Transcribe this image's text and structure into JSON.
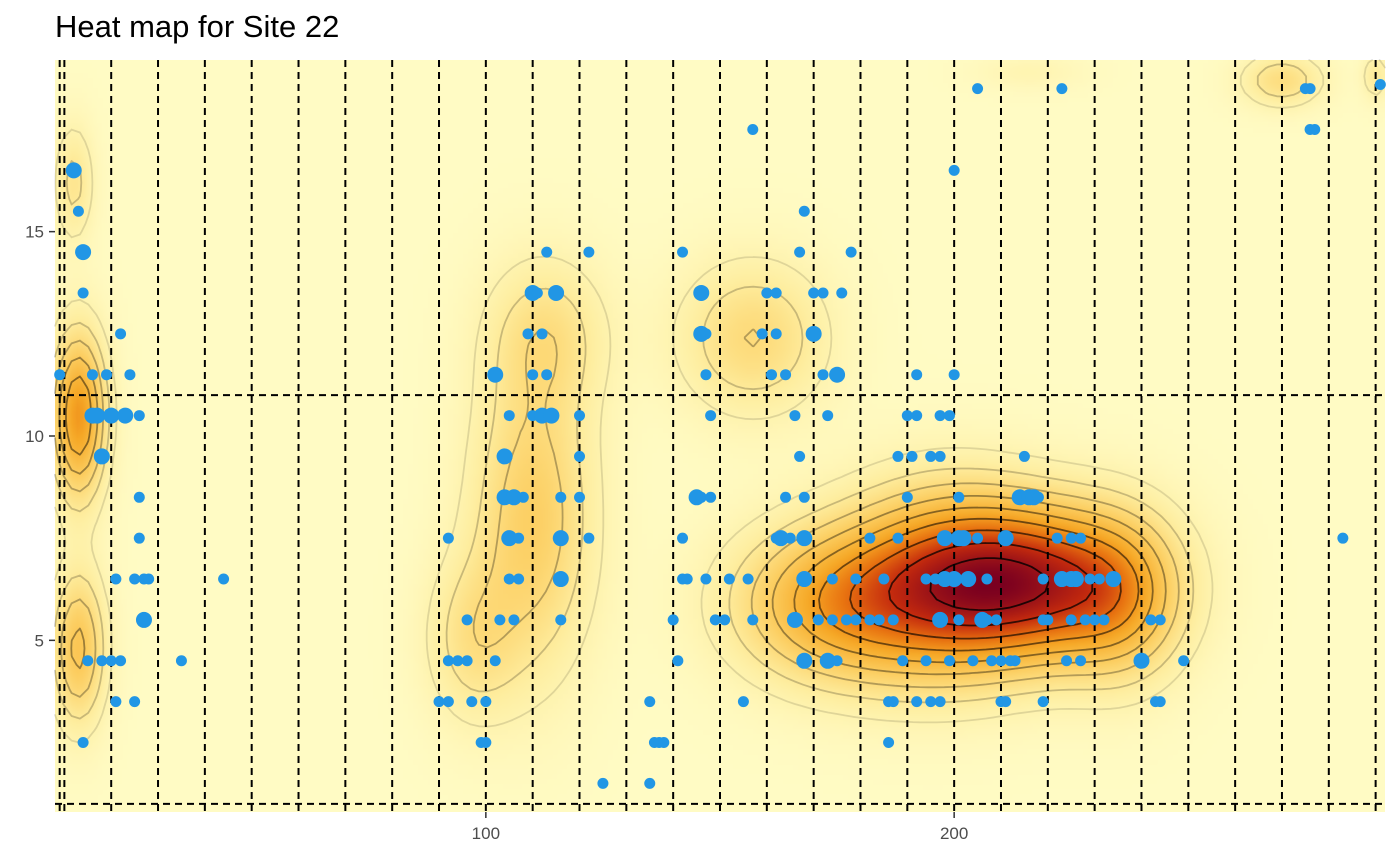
{
  "chart_data": {
    "type": "heatmap",
    "title": "Heat map for Site 22",
    "xlabel": "",
    "ylabel": "",
    "xlim": [
      8,
      292
    ],
    "ylim": [
      0.8,
      19.2
    ],
    "x_ticks": [
      100,
      200
    ],
    "y_ticks": [
      5,
      10,
      15
    ],
    "grid": false,
    "legend": "none",
    "colors": {
      "background": "#ffffff",
      "heat_low": "#fff8c0",
      "heat_mid": "#f8b530",
      "heat_high": "#800020",
      "contour": "#000000",
      "points": "#2196e5",
      "reference_lines": "#000000"
    },
    "reference_lines": {
      "vertical_x": [
        9,
        10,
        20,
        30,
        40,
        50,
        60,
        70,
        80,
        90,
        100,
        110,
        120,
        130,
        140,
        150,
        160,
        170,
        180,
        190,
        200,
        210,
        220,
        230,
        240,
        250,
        260,
        270,
        280,
        290
      ],
      "horizontal_y": [
        1,
        11
      ]
    },
    "density_components": [
      {
        "x": 217,
        "y": 6.4,
        "sx": 16,
        "sy": 1.3,
        "w": 1.0
      },
      {
        "x": 197,
        "y": 6.4,
        "sx": 14,
        "sy": 1.6,
        "w": 0.6
      },
      {
        "x": 175,
        "y": 5.9,
        "sx": 15,
        "sy": 1.3,
        "w": 0.6
      },
      {
        "x": 236,
        "y": 6.0,
        "sx": 9,
        "sy": 1.4,
        "w": 0.35
      },
      {
        "x": 157,
        "y": 12.4,
        "sx": 11,
        "sy": 1.3,
        "w": 0.3
      },
      {
        "x": 110,
        "y": 8.0,
        "sx": 9,
        "sy": 2.6,
        "w": 0.38
      },
      {
        "x": 97,
        "y": 5.0,
        "sx": 7,
        "sy": 1.4,
        "w": 0.22
      },
      {
        "x": 113,
        "y": 12.5,
        "sx": 9,
        "sy": 1.3,
        "w": 0.22
      },
      {
        "x": 13,
        "y": 10.5,
        "sx": 4,
        "sy": 1.4,
        "w": 0.7
      },
      {
        "x": 13,
        "y": 4.8,
        "sx": 4,
        "sy": 1.3,
        "w": 0.45
      },
      {
        "x": 12,
        "y": 16.2,
        "sx": 3,
        "sy": 1.0,
        "w": 0.22
      },
      {
        "x": 270,
        "y": 18.7,
        "sx": 6,
        "sy": 0.45,
        "w": 0.28
      },
      {
        "x": 290,
        "y": 18.8,
        "sx": 2,
        "sy": 0.4,
        "w": 0.18
      },
      {
        "x": 216,
        "y": 18.9,
        "sx": 8,
        "sy": 0.3,
        "w": 0.08
      }
    ],
    "points": [
      [
        9,
        11.5,
        1
      ],
      [
        12,
        16.5,
        2
      ],
      [
        13,
        15.5,
        1
      ],
      [
        14,
        14.5,
        2
      ],
      [
        14,
        13.5,
        1
      ],
      [
        15,
        4.5,
        1
      ],
      [
        14,
        2.5,
        1
      ],
      [
        16,
        11.5,
        1
      ],
      [
        16,
        10.5,
        2
      ],
      [
        17,
        10.5,
        2
      ],
      [
        18,
        9.5,
        2
      ],
      [
        18,
        4.5,
        1
      ],
      [
        19,
        11.5,
        1
      ],
      [
        20,
        10.5,
        2
      ],
      [
        20,
        4.5,
        1
      ],
      [
        21,
        6.5,
        1
      ],
      [
        21,
        3.5,
        1
      ],
      [
        22,
        4.5,
        1
      ],
      [
        22,
        12.5,
        1
      ],
      [
        23,
        10.5,
        2
      ],
      [
        24,
        11.5,
        1
      ],
      [
        25,
        3.5,
        1
      ],
      [
        25,
        6.5,
        1
      ],
      [
        26,
        10.5,
        1
      ],
      [
        26,
        8.5,
        1
      ],
      [
        26,
        7.5,
        1
      ],
      [
        27,
        6.5,
        1
      ],
      [
        27,
        5.5,
        2
      ],
      [
        28,
        6.5,
        1
      ],
      [
        35,
        4.5,
        1
      ],
      [
        44,
        6.5,
        1
      ],
      [
        92,
        7.5,
        1
      ],
      [
        90,
        3.5,
        1
      ],
      [
        92,
        3.5,
        1
      ],
      [
        92,
        4.5,
        1
      ],
      [
        94,
        4.5,
        1
      ],
      [
        96,
        4.5,
        1
      ],
      [
        96,
        5.5,
        1
      ],
      [
        97,
        3.5,
        1
      ],
      [
        99,
        2.5,
        1
      ],
      [
        100,
        2.5,
        1
      ],
      [
        100,
        3.5,
        1
      ],
      [
        102,
        4.5,
        1
      ],
      [
        104,
        9.5,
        2
      ],
      [
        104,
        8.5,
        2
      ],
      [
        102,
        11.5,
        2
      ],
      [
        103,
        5.5,
        1
      ],
      [
        105,
        7.5,
        2
      ],
      [
        105,
        6.5,
        1
      ],
      [
        105,
        10.5,
        1
      ],
      [
        106,
        5.5,
        1
      ],
      [
        106,
        8.5,
        2
      ],
      [
        107,
        7.5,
        1
      ],
      [
        107,
        6.5,
        1
      ],
      [
        108,
        8.5,
        1
      ],
      [
        109,
        12.5,
        1
      ],
      [
        110,
        11.5,
        1
      ],
      [
        110,
        10.5,
        1
      ],
      [
        110,
        13.5,
        2
      ],
      [
        111,
        13.5,
        1
      ],
      [
        112,
        10.5,
        2
      ],
      [
        112,
        12.5,
        1
      ],
      [
        113,
        11.5,
        1
      ],
      [
        113,
        14.5,
        1
      ],
      [
        114,
        10.5,
        2
      ],
      [
        115,
        13.5,
        2
      ],
      [
        116,
        6.5,
        2
      ],
      [
        116,
        7.5,
        2
      ],
      [
        116,
        8.5,
        1
      ],
      [
        116,
        5.5,
        1
      ],
      [
        120,
        9.5,
        1
      ],
      [
        120,
        10.5,
        1
      ],
      [
        120,
        8.5,
        1
      ],
      [
        122,
        7.5,
        1
      ],
      [
        122,
        14.5,
        1
      ],
      [
        125,
        1.5,
        1
      ],
      [
        135,
        3.5,
        1
      ],
      [
        135,
        1.5,
        1
      ],
      [
        136,
        2.5,
        1
      ],
      [
        137,
        2.5,
        1
      ],
      [
        138,
        2.5,
        1
      ],
      [
        140,
        5.5,
        1
      ],
      [
        141,
        4.5,
        1
      ],
      [
        142,
        7.5,
        1
      ],
      [
        142,
        6.5,
        1
      ],
      [
        142,
        14.5,
        1
      ],
      [
        143,
        6.5,
        1
      ],
      [
        145,
        8.5,
        2
      ],
      [
        146,
        13.5,
        2
      ],
      [
        146,
        8.5,
        1
      ],
      [
        146,
        12.5,
        2
      ],
      [
        147,
        11.5,
        1
      ],
      [
        147,
        12.5,
        1
      ],
      [
        148,
        10.5,
        1
      ],
      [
        147,
        6.5,
        1
      ],
      [
        148,
        8.5,
        1
      ],
      [
        149,
        5.5,
        1
      ],
      [
        151,
        5.5,
        1
      ],
      [
        152,
        6.5,
        1
      ],
      [
        155,
        3.5,
        1
      ],
      [
        156,
        6.5,
        1
      ],
      [
        157,
        5.5,
        1
      ],
      [
        157,
        17.5,
        1
      ],
      [
        159,
        12.5,
        1
      ],
      [
        160,
        13.5,
        1
      ],
      [
        162,
        13.5,
        1
      ],
      [
        161,
        11.5,
        1
      ],
      [
        162,
        12.5,
        1
      ],
      [
        162,
        7.5,
        1
      ],
      [
        163,
        7.5,
        2
      ],
      [
        164,
        11.5,
        1
      ],
      [
        164,
        8.5,
        1
      ],
      [
        165,
        7.5,
        1
      ],
      [
        166,
        10.5,
        1
      ],
      [
        166,
        5.5,
        2
      ],
      [
        167,
        14.5,
        1
      ],
      [
        167,
        9.5,
        1
      ],
      [
        168,
        6.5,
        2
      ],
      [
        168,
        15.5,
        1
      ],
      [
        168,
        4.5,
        2
      ],
      [
        168,
        7.5,
        2
      ],
      [
        168,
        8.5,
        1
      ],
      [
        170,
        12.5,
        2
      ],
      [
        170,
        13.5,
        1
      ],
      [
        171,
        5.5,
        1
      ],
      [
        172,
        13.5,
        1
      ],
      [
        172,
        11.5,
        1
      ],
      [
        173,
        4.5,
        2
      ],
      [
        173,
        10.5,
        1
      ],
      [
        174,
        6.5,
        1
      ],
      [
        174,
        5.5,
        1
      ],
      [
        175,
        11.5,
        2
      ],
      [
        175,
        4.5,
        1
      ],
      [
        176,
        13.5,
        1
      ],
      [
        177,
        5.5,
        1
      ],
      [
        178,
        14.5,
        1
      ],
      [
        179,
        5.5,
        1
      ],
      [
        179,
        6.5,
        1
      ],
      [
        182,
        7.5,
        1
      ],
      [
        182,
        5.5,
        1
      ],
      [
        184,
        5.5,
        1
      ],
      [
        185,
        6.5,
        1
      ],
      [
        186,
        3.5,
        1
      ],
      [
        186,
        2.5,
        1
      ],
      [
        187,
        3.5,
        1
      ],
      [
        187,
        5.5,
        1
      ],
      [
        188,
        7.5,
        1
      ],
      [
        188,
        9.5,
        1
      ],
      [
        189,
        4.5,
        1
      ],
      [
        190,
        8.5,
        1
      ],
      [
        190,
        10.5,
        1
      ],
      [
        191,
        9.5,
        1
      ],
      [
        192,
        11.5,
        1
      ],
      [
        192,
        10.5,
        1
      ],
      [
        192,
        3.5,
        1
      ],
      [
        194,
        6.5,
        1
      ],
      [
        194,
        4.5,
        1
      ],
      [
        195,
        3.5,
        1
      ],
      [
        195,
        9.5,
        1
      ],
      [
        196,
        6.5,
        1
      ],
      [
        197,
        5.5,
        2
      ],
      [
        197,
        3.5,
        1
      ],
      [
        197,
        9.5,
        1
      ],
      [
        197,
        10.5,
        1
      ],
      [
        198,
        6.5,
        2
      ],
      [
        198,
        7.5,
        2
      ],
      [
        199,
        10.5,
        1
      ],
      [
        199,
        4.5,
        1
      ],
      [
        200,
        11.5,
        1
      ],
      [
        200,
        6.5,
        2
      ],
      [
        200,
        16.5,
        1
      ],
      [
        201,
        8.5,
        1
      ],
      [
        201,
        7.5,
        2
      ],
      [
        201,
        5.5,
        1
      ],
      [
        202,
        7.5,
        2
      ],
      [
        203,
        6.5,
        2
      ],
      [
        204,
        4.5,
        1
      ],
      [
        205,
        18.5,
        1
      ],
      [
        205,
        7.5,
        1
      ],
      [
        206,
        5.5,
        2
      ],
      [
        207,
        5.5,
        1
      ],
      [
        207,
        6.5,
        1
      ],
      [
        208,
        4.5,
        1
      ],
      [
        209,
        5.5,
        1
      ],
      [
        210,
        4.5,
        1
      ],
      [
        210,
        3.5,
        1
      ],
      [
        211,
        3.5,
        1
      ],
      [
        211,
        7.5,
        2
      ],
      [
        212,
        4.5,
        1
      ],
      [
        213,
        4.5,
        1
      ],
      [
        214,
        8.5,
        2
      ],
      [
        215,
        9.5,
        1
      ],
      [
        216,
        8.5,
        2
      ],
      [
        217,
        8.5,
        2
      ],
      [
        218,
        8.5,
        1
      ],
      [
        219,
        6.5,
        1
      ],
      [
        219,
        5.5,
        1
      ],
      [
        219,
        3.5,
        1
      ],
      [
        220,
        5.5,
        1
      ],
      [
        222,
        7.5,
        1
      ],
      [
        223,
        18.5,
        1
      ],
      [
        223,
        6.5,
        2
      ],
      [
        224,
        4.5,
        1
      ],
      [
        225,
        6.5,
        2
      ],
      [
        225,
        7.5,
        1
      ],
      [
        225,
        5.5,
        1
      ],
      [
        226,
        6.5,
        2
      ],
      [
        227,
        4.5,
        1
      ],
      [
        227,
        7.5,
        1
      ],
      [
        228,
        5.5,
        1
      ],
      [
        229,
        6.5,
        1
      ],
      [
        230,
        5.5,
        1
      ],
      [
        231,
        6.5,
        1
      ],
      [
        232,
        5.5,
        1
      ],
      [
        234,
        6.5,
        2
      ],
      [
        240,
        4.5,
        2
      ],
      [
        242,
        5.5,
        1
      ],
      [
        243,
        3.5,
        1
      ],
      [
        244,
        5.5,
        1
      ],
      [
        244,
        3.5,
        1
      ],
      [
        249,
        4.5,
        1
      ],
      [
        275,
        18.5,
        1
      ],
      [
        276,
        18.5,
        1
      ],
      [
        276,
        17.5,
        1
      ],
      [
        277,
        17.5,
        1
      ],
      [
        283,
        7.5,
        1
      ],
      [
        291,
        18.6,
        1
      ]
    ]
  }
}
